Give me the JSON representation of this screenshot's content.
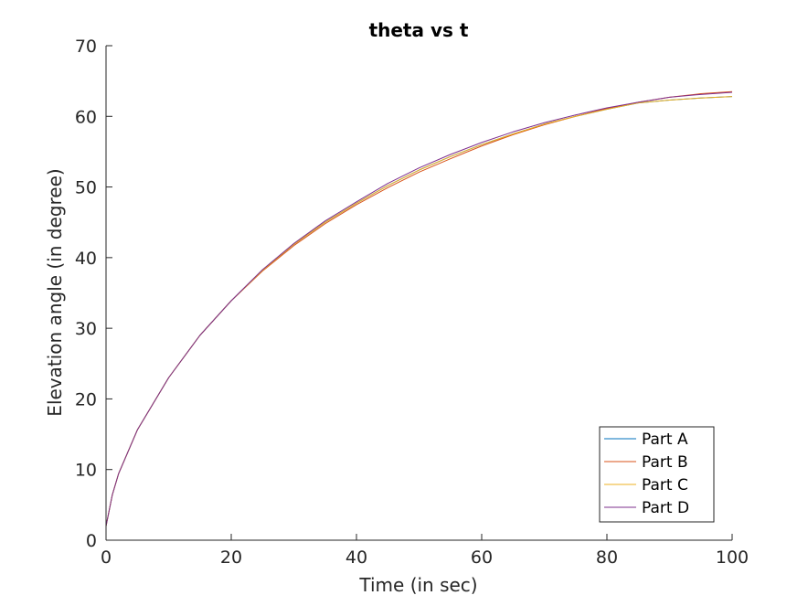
{
  "chart_data": {
    "type": "line",
    "title": "theta vs t",
    "xlabel": "Time (in sec)",
    "ylabel": "Elevation angle (in degree)",
    "xlim": [
      0,
      100
    ],
    "ylim": [
      0,
      70
    ],
    "xticks": [
      0,
      20,
      40,
      60,
      80,
      100
    ],
    "yticks": [
      0,
      10,
      20,
      30,
      40,
      50,
      60,
      70
    ],
    "grid": false,
    "legend_position": "bottom-right",
    "x": [
      0,
      1,
      2,
      5,
      10,
      15,
      20,
      25,
      30,
      35,
      40,
      45,
      50,
      55,
      60,
      65,
      70,
      75,
      80,
      85,
      90,
      95,
      100
    ],
    "series": [
      {
        "name": "Part A",
        "color": "#0072BD",
        "values": [
          2.0,
          6.4,
          9.4,
          15.6,
          23.0,
          29.0,
          33.9,
          38.2,
          41.9,
          45.0,
          47.7,
          50.2,
          52.4,
          54.3,
          56.0,
          57.5,
          58.9,
          60.0,
          61.0,
          61.9,
          62.3,
          62.6,
          62.8
        ]
      },
      {
        "name": "Part B",
        "color": "#D95319",
        "values": [
          2.0,
          6.4,
          9.4,
          15.6,
          23.0,
          29.0,
          33.9,
          38.1,
          41.7,
          44.8,
          47.5,
          49.9,
          52.1,
          54.0,
          55.8,
          57.4,
          58.8,
          60.0,
          61.1,
          62.0,
          62.7,
          63.2,
          63.5
        ]
      },
      {
        "name": "Part C",
        "color": "#EDB120",
        "values": [
          2.0,
          6.4,
          9.4,
          15.6,
          23.0,
          29.0,
          33.9,
          38.2,
          41.9,
          45.0,
          47.7,
          50.2,
          52.4,
          54.3,
          56.0,
          57.5,
          58.9,
          60.0,
          61.0,
          61.9,
          62.3,
          62.6,
          62.8
        ]
      },
      {
        "name": "Part D",
        "color": "#7E2F8E",
        "values": [
          2.0,
          6.4,
          9.4,
          15.6,
          23.0,
          29.0,
          33.9,
          38.3,
          42.0,
          45.2,
          47.9,
          50.5,
          52.7,
          54.6,
          56.3,
          57.8,
          59.1,
          60.2,
          61.2,
          62.0,
          62.7,
          63.1,
          63.4
        ]
      }
    ]
  }
}
